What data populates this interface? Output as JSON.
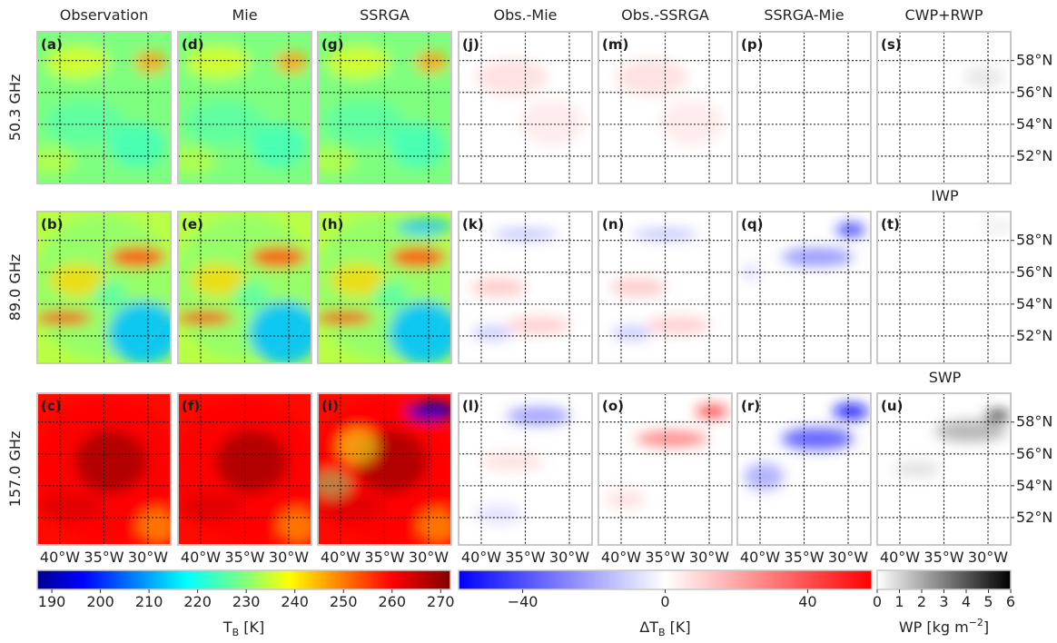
{
  "chart_data": {
    "type": "heatmap",
    "columns": [
      {
        "id": "obs",
        "title": "Observation",
        "kind": "tb",
        "cmap": "jet"
      },
      {
        "id": "mie",
        "title": "Mie",
        "kind": "tb",
        "cmap": "jet"
      },
      {
        "id": "ssrga",
        "title": "SSRGA",
        "kind": "tb",
        "cmap": "jet"
      },
      {
        "id": "obs-mie",
        "title": "Obs.-Mie",
        "kind": "dtb",
        "cmap": "bwr"
      },
      {
        "id": "obs-ssrga",
        "title": "Obs.-SSRGA",
        "kind": "dtb",
        "cmap": "bwr"
      },
      {
        "id": "ssrga-mie",
        "title": "SSRGA-Mie",
        "kind": "dtb",
        "cmap": "bwr"
      },
      {
        "id": "wp",
        "title": "CWP+RWP",
        "kind": "wp",
        "cmap": "greys"
      }
    ],
    "rows": [
      {
        "label": "50.3 GHz",
        "wp_title": "CWP+RWP"
      },
      {
        "label": "89.0 GHz",
        "wp_title": "IWP"
      },
      {
        "label": "157.0 GHz",
        "wp_title": "SWP"
      }
    ],
    "panel_labels": [
      [
        "(a)",
        "(d)",
        "(g)",
        "(j)",
        "(m)",
        "(p)",
        "(s)"
      ],
      [
        "(b)",
        "(e)",
        "(h)",
        "(k)",
        "(n)",
        "(q)",
        "(t)"
      ],
      [
        "(c)",
        "(f)",
        "(i)",
        "(l)",
        "(o)",
        "(r)",
        "(u)"
      ]
    ],
    "lon_ticks": [
      "40°W",
      "35°W",
      "30°W"
    ],
    "lat_ticks": [
      "58°N",
      "56°N",
      "54°N",
      "52°N"
    ],
    "colorbars": [
      {
        "id": "tb",
        "label": "T_B  [K]",
        "range": [
          187,
          272
        ],
        "ticks": [
          190,
          200,
          210,
          220,
          230,
          240,
          250,
          260,
          270
        ],
        "cmap": "jet"
      },
      {
        "id": "dtb",
        "label": "ΔT_B [K]",
        "range": [
          -58,
          58
        ],
        "ticks": [
          -40,
          0,
          40
        ],
        "cmap": "bwr"
      },
      {
        "id": "wp",
        "label": "WP [kg m^-2]",
        "range": [
          0,
          6
        ],
        "ticks": [
          0,
          1,
          2,
          3,
          4,
          5,
          6
        ],
        "cmap": "greys"
      }
    ],
    "grid": true
  }
}
